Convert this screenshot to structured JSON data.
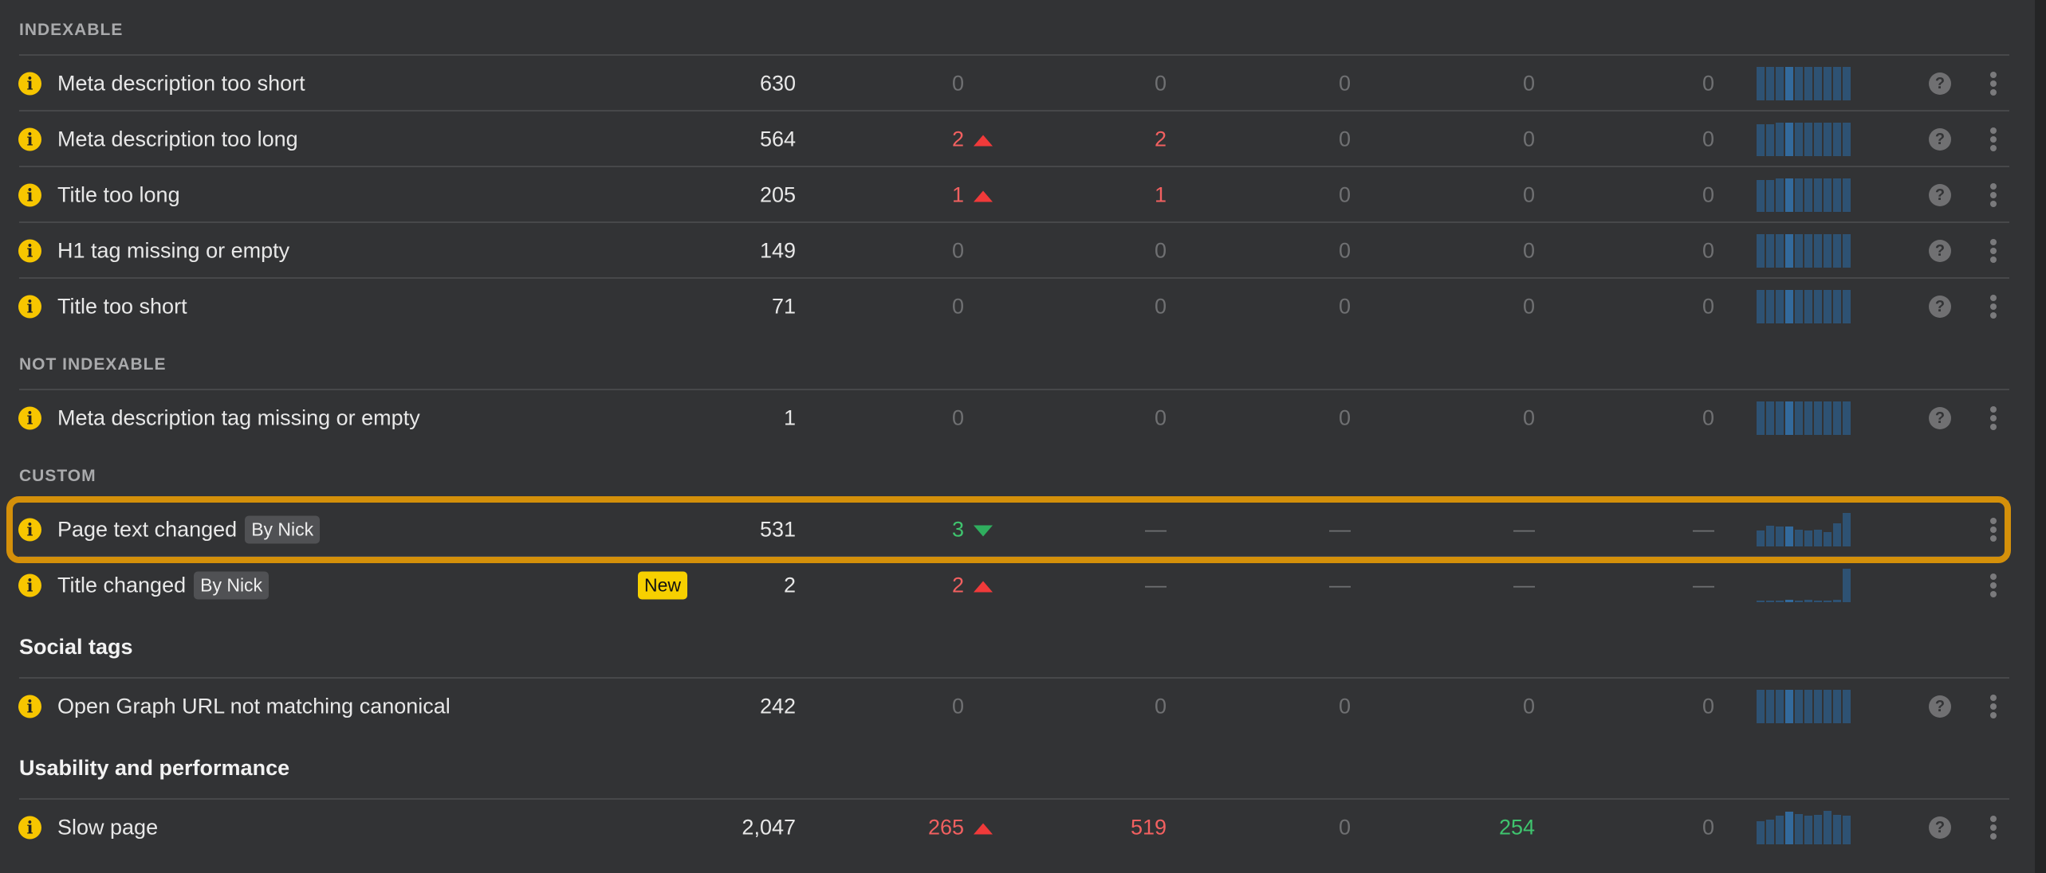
{
  "colors": {
    "accent_highlight": "#d4900a",
    "increase": "#f26060",
    "decrease": "#3fc46e",
    "badge_new": "#f7d000",
    "sparkline": "#2e5273"
  },
  "sections": [
    {
      "label": "INDEXABLE",
      "style": "caps",
      "rows": [
        {
          "name": "Meta description too short",
          "count": "630",
          "cols": [
            {
              "v": "0",
              "t": "zero"
            },
            {
              "v": "0",
              "t": "zero"
            },
            {
              "v": "0",
              "t": "zero"
            },
            {
              "v": "0",
              "t": "zero"
            },
            {
              "v": "0",
              "t": "zero"
            }
          ],
          "spark": [
            1,
            1,
            1,
            1,
            1,
            1,
            1,
            1,
            1,
            1
          ],
          "help": true
        },
        {
          "name": "Meta description too long",
          "count": "564",
          "cols": [
            {
              "v": "2",
              "t": "red",
              "arrow": "up"
            },
            {
              "v": "2",
              "t": "red"
            },
            {
              "v": "0",
              "t": "zero"
            },
            {
              "v": "0",
              "t": "zero"
            },
            {
              "v": "0",
              "t": "zero"
            }
          ],
          "spark": [
            0.95,
            0.95,
            1,
            1,
            1,
            1,
            1,
            1,
            1,
            1
          ],
          "help": true
        },
        {
          "name": "Title too long",
          "count": "205",
          "cols": [
            {
              "v": "1",
              "t": "red",
              "arrow": "up"
            },
            {
              "v": "1",
              "t": "red"
            },
            {
              "v": "0",
              "t": "zero"
            },
            {
              "v": "0",
              "t": "zero"
            },
            {
              "v": "0",
              "t": "zero"
            }
          ],
          "spark": [
            0.95,
            0.95,
            1,
            1,
            1,
            1,
            1,
            1,
            1,
            1
          ],
          "help": true
        },
        {
          "name": "H1 tag missing or empty",
          "count": "149",
          "cols": [
            {
              "v": "0",
              "t": "zero"
            },
            {
              "v": "0",
              "t": "zero"
            },
            {
              "v": "0",
              "t": "zero"
            },
            {
              "v": "0",
              "t": "zero"
            },
            {
              "v": "0",
              "t": "zero"
            }
          ],
          "spark": [
            1,
            1,
            1,
            1,
            1,
            1,
            1,
            1,
            1,
            1
          ],
          "help": true
        },
        {
          "name": "Title too short",
          "count": "71",
          "cols": [
            {
              "v": "0",
              "t": "zero"
            },
            {
              "v": "0",
              "t": "zero"
            },
            {
              "v": "0",
              "t": "zero"
            },
            {
              "v": "0",
              "t": "zero"
            },
            {
              "v": "0",
              "t": "zero"
            }
          ],
          "spark": [
            1,
            1,
            1,
            1,
            1,
            1,
            1,
            1,
            1,
            1
          ],
          "help": true
        }
      ]
    },
    {
      "label": "NOT INDEXABLE",
      "style": "caps",
      "rows": [
        {
          "name": "Meta description tag missing or empty",
          "count": "1",
          "cols": [
            {
              "v": "0",
              "t": "zero"
            },
            {
              "v": "0",
              "t": "zero"
            },
            {
              "v": "0",
              "t": "zero"
            },
            {
              "v": "0",
              "t": "zero"
            },
            {
              "v": "0",
              "t": "zero"
            }
          ],
          "spark": [
            1,
            1,
            1,
            1,
            1,
            1,
            1,
            1,
            1,
            1
          ],
          "help": true
        }
      ]
    },
    {
      "label": "CUSTOM",
      "style": "caps",
      "rows": [
        {
          "name": "Page text changed",
          "tag": "By Nick",
          "count": "531",
          "cols": [
            {
              "v": "3",
              "t": "green",
              "arrow": "down"
            },
            {
              "v": "—",
              "t": "zero"
            },
            {
              "v": "—",
              "t": "zero"
            },
            {
              "v": "—",
              "t": "zero"
            },
            {
              "v": "—",
              "t": "zero"
            }
          ],
          "spark": [
            0.48,
            0.62,
            0.6,
            0.6,
            0.5,
            0.48,
            0.5,
            0.43,
            0.68,
            1
          ],
          "help": false,
          "highlighted": true
        },
        {
          "name": "Title changed",
          "tag": "By Nick",
          "badge": "New",
          "count": "2",
          "cols": [
            {
              "v": "2",
              "t": "red",
              "arrow": "up"
            },
            {
              "v": "—",
              "t": "zero"
            },
            {
              "v": "—",
              "t": "zero"
            },
            {
              "v": "—",
              "t": "zero"
            },
            {
              "v": "—",
              "t": "zero"
            }
          ],
          "spark": [
            0.04,
            0.04,
            0.04,
            0.07,
            0.04,
            0.07,
            0.04,
            0.04,
            0.07,
            1
          ],
          "help": false
        }
      ]
    },
    {
      "label": "Social tags",
      "style": "big",
      "rows": [
        {
          "name": "Open Graph URL not matching canonical",
          "count": "242",
          "cols": [
            {
              "v": "0",
              "t": "zero"
            },
            {
              "v": "0",
              "t": "zero"
            },
            {
              "v": "0",
              "t": "zero"
            },
            {
              "v": "0",
              "t": "zero"
            },
            {
              "v": "0",
              "t": "zero"
            }
          ],
          "spark": [
            1,
            1,
            1,
            1,
            1,
            1,
            1,
            1,
            1,
            1
          ],
          "help": true
        }
      ]
    },
    {
      "label": "Usability and performance",
      "style": "big",
      "rows": [
        {
          "name": "Slow page",
          "count": "2,047",
          "cols": [
            {
              "v": "265",
              "t": "red",
              "arrow": "up"
            },
            {
              "v": "519",
              "t": "red"
            },
            {
              "v": "0",
              "t": "zero"
            },
            {
              "v": "254",
              "t": "green"
            },
            {
              "v": "0",
              "t": "zero"
            }
          ],
          "spark": [
            0.68,
            0.73,
            0.85,
            0.98,
            0.9,
            0.85,
            0.88,
            1,
            0.88,
            0.85
          ],
          "help": true
        }
      ]
    }
  ]
}
